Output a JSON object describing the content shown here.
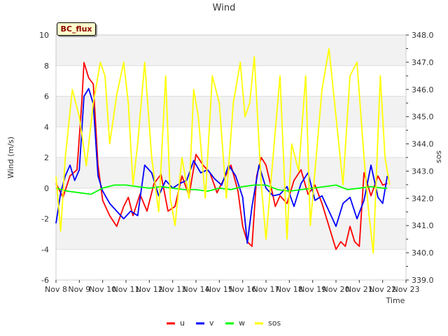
{
  "chart_data": {
    "type": "line",
    "title": "Wind",
    "site_label": "BC_flux",
    "xlabel": "Time",
    "ylabel_left": "Wind (m/s)",
    "ylabel_right": "sos",
    "x_ticks": [
      "Nov 8",
      "Nov 9",
      "Nov 10",
      "Nov 11",
      "Nov 12",
      "Nov 13",
      "Nov 14",
      "Nov 15",
      "Nov 16",
      "Nov 17",
      "Nov 18",
      "Nov 19",
      "Nov 20",
      "Nov 21",
      "Nov 22",
      "Nov 23"
    ],
    "y_left_ticks": [
      "-6",
      "-4",
      "-2",
      "0",
      "2",
      "4",
      "6",
      "8",
      "10"
    ],
    "y_right_ticks": [
      "339.0",
      "340.0",
      "341.0",
      "342.0",
      "343.0",
      "344.0",
      "345.0",
      "346.0",
      "347.0",
      "348.0"
    ],
    "xlim_days": [
      8,
      23
    ],
    "ylim_left": [
      -6,
      10
    ],
    "ylim_right": [
      339,
      348
    ],
    "legend_position": "bottom-center",
    "series": [
      {
        "name": "u",
        "axis": "left",
        "color": "#ff0000",
        "x": [
          8.0,
          8.3,
          8.6,
          8.9,
          9.1,
          9.2,
          9.4,
          9.6,
          9.8,
          10.0,
          10.3,
          10.6,
          10.9,
          11.1,
          11.3,
          11.6,
          11.9,
          12.2,
          12.5,
          12.8,
          13.1,
          13.4,
          13.7,
          14.0,
          14.3,
          14.6,
          14.9,
          15.2,
          15.5,
          15.8,
          16.0,
          16.2,
          16.4,
          16.6,
          16.8,
          17.0,
          17.2,
          17.4,
          17.6,
          17.9,
          18.2,
          18.5,
          18.8,
          19.1,
          19.4,
          19.7,
          20.0,
          20.2,
          20.4,
          20.6,
          20.8,
          21.0,
          21.2,
          21.5,
          21.8,
          22.0,
          22.2
        ],
        "values": [
          0.3,
          -0.6,
          0.8,
          1.2,
          5.5,
          8.2,
          7.2,
          6.8,
          1.5,
          -0.8,
          -1.8,
          -2.5,
          -1.2,
          -0.6,
          -1.8,
          -0.4,
          -1.5,
          0.3,
          0.9,
          -1.5,
          -1.2,
          0.8,
          -0.5,
          2.2,
          1.5,
          1.0,
          -0.3,
          0.6,
          1.5,
          -0.2,
          -2.5,
          -3.5,
          -3.8,
          0.8,
          2.0,
          1.5,
          0.2,
          -1.2,
          -0.5,
          -1.0,
          0.5,
          1.2,
          -0.4,
          0.2,
          -1.0,
          -2.5,
          -4.0,
          -3.5,
          -3.8,
          -2.5,
          -3.5,
          -3.8,
          1.0,
          -0.5,
          0.8,
          0.2,
          0.3
        ]
      },
      {
        "name": "v",
        "axis": "left",
        "color": "#0000ff",
        "x": [
          8.0,
          8.2,
          8.4,
          8.6,
          8.8,
          9.0,
          9.2,
          9.4,
          9.6,
          9.8,
          10.0,
          10.3,
          10.6,
          10.9,
          11.2,
          11.5,
          11.8,
          12.1,
          12.4,
          12.7,
          13.0,
          13.3,
          13.6,
          13.9,
          14.2,
          14.5,
          14.8,
          15.1,
          15.4,
          15.7,
          16.0,
          16.2,
          16.4,
          16.7,
          17.0,
          17.3,
          17.6,
          17.9,
          18.2,
          18.5,
          18.8,
          19.1,
          19.4,
          19.7,
          20.0,
          20.3,
          20.6,
          20.9,
          21.2,
          21.5,
          21.8,
          22.0,
          22.2
        ],
        "values": [
          -2.3,
          -0.3,
          0.8,
          1.5,
          0.5,
          1.2,
          6.0,
          6.5,
          5.5,
          0.8,
          -0.2,
          -1.0,
          -1.5,
          -2.0,
          -1.5,
          -1.8,
          1.5,
          1.0,
          -0.5,
          0.5,
          0.0,
          0.3,
          0.5,
          1.8,
          1.0,
          1.2,
          0.6,
          0.2,
          1.5,
          0.8,
          -0.6,
          -3.6,
          -1.2,
          1.5,
          0.0,
          -0.5,
          -0.4,
          0.1,
          -1.2,
          0.3,
          1.0,
          -0.8,
          -0.5,
          -1.5,
          -2.5,
          -1.0,
          -0.6,
          -2.0,
          -0.8,
          1.5,
          -0.6,
          -1.0,
          0.8
        ]
      },
      {
        "name": "w",
        "axis": "left",
        "color": "#00ff00",
        "x": [
          8.0,
          8.5,
          9.0,
          9.5,
          10.0,
          10.5,
          11.0,
          11.5,
          12.0,
          12.5,
          13.0,
          13.5,
          14.0,
          14.5,
          15.0,
          15.5,
          16.0,
          16.5,
          17.0,
          17.5,
          18.0,
          18.5,
          19.0,
          19.5,
          20.0,
          20.5,
          21.0,
          21.5,
          22.0,
          22.2
        ],
        "values": [
          0.0,
          -0.2,
          -0.3,
          -0.4,
          0.0,
          0.2,
          0.2,
          0.1,
          0.0,
          0.1,
          0.0,
          -0.1,
          -0.1,
          -0.2,
          0.0,
          -0.1,
          0.1,
          0.2,
          0.2,
          -0.1,
          -0.2,
          -0.1,
          0.0,
          0.1,
          0.2,
          -0.1,
          0.0,
          0.1,
          0.0,
          0.0
        ]
      },
      {
        "name": "sos",
        "axis": "right",
        "color": "#ffff00",
        "x": [
          8.0,
          8.2,
          8.4,
          8.7,
          9.0,
          9.3,
          9.6,
          9.9,
          10.1,
          10.3,
          10.6,
          10.9,
          11.1,
          11.3,
          11.5,
          11.8,
          12.1,
          12.4,
          12.7,
          12.9,
          13.1,
          13.4,
          13.7,
          13.9,
          14.1,
          14.4,
          14.7,
          15.0,
          15.3,
          15.6,
          15.9,
          16.1,
          16.3,
          16.5,
          16.8,
          17.0,
          17.3,
          17.6,
          17.9,
          18.1,
          18.4,
          18.7,
          18.9,
          19.2,
          19.4,
          19.7,
          20.0,
          20.3,
          20.6,
          20.9,
          21.2,
          21.4,
          21.6,
          21.9,
          22.1,
          22.3
        ],
        "values": [
          342.8,
          340.8,
          343.5,
          346.0,
          345.0,
          343.2,
          345.5,
          347.0,
          346.5,
          344.0,
          345.8,
          347.0,
          345.5,
          342.5,
          344.0,
          347.0,
          343.5,
          341.5,
          346.5,
          342.0,
          341.0,
          343.5,
          342.0,
          346.0,
          345.0,
          342.0,
          346.5,
          345.5,
          342.0,
          345.5,
          347.0,
          345.0,
          345.5,
          347.2,
          342.5,
          340.5,
          343.5,
          346.5,
          340.5,
          344.0,
          343.0,
          346.5,
          341.0,
          344.0,
          346.0,
          347.5,
          345.0,
          342.5,
          346.5,
          347.0,
          343.5,
          341.5,
          340.0,
          346.5,
          343.5,
          342.5
        ]
      }
    ]
  }
}
